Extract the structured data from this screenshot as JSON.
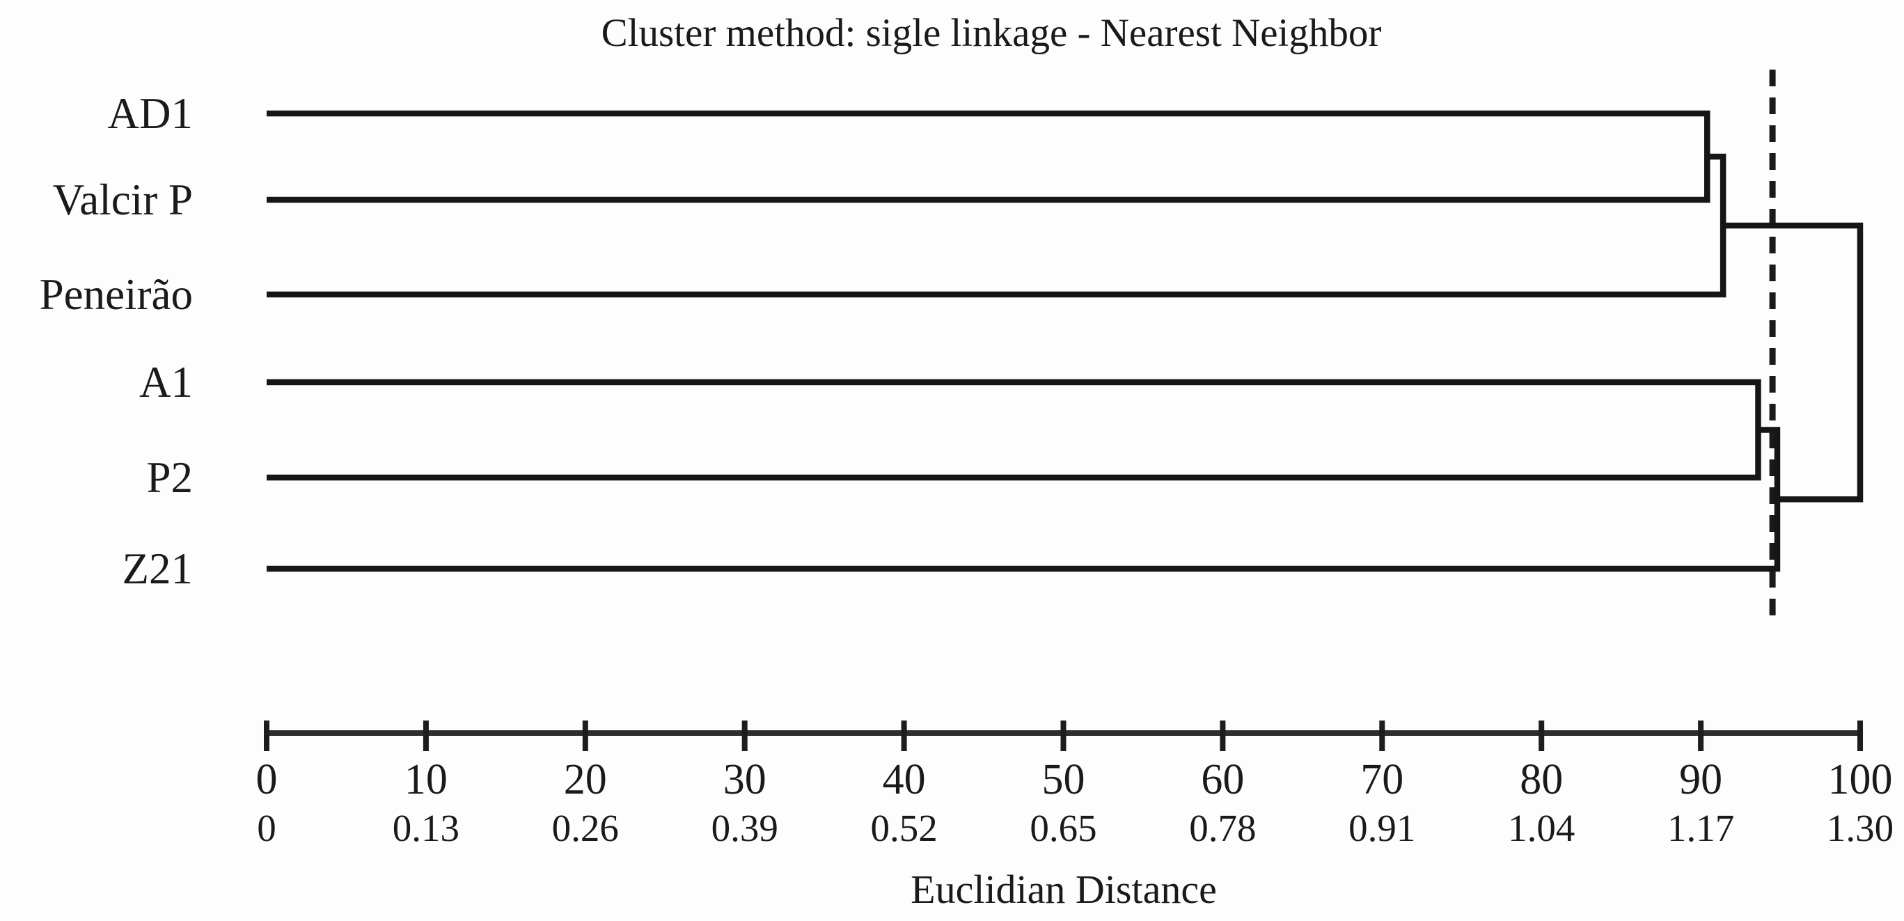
{
  "chart_data": {
    "type": "dendrogram",
    "orientation": "horizontal-left-leaves",
    "title": "Cluster method: sigle linkage - Nearest Neighbor",
    "xlabel": "Euclidian Distance",
    "grid": false,
    "legend": null,
    "leaves": [
      "AD1",
      "Valcir P",
      "Peneirão",
      "A1",
      "P2",
      "Z21"
    ],
    "leaf_start_value": 0,
    "merges": [
      {
        "id": "node0",
        "children": [
          "AD1",
          "Valcir P"
        ],
        "distance_pct": 90.4,
        "distance_euclidean": 1.18
      },
      {
        "id": "node1",
        "children": [
          "node0",
          "Peneirão"
        ],
        "distance_pct": 91.4,
        "distance_euclidean": 1.19
      },
      {
        "id": "node2",
        "children": [
          "A1",
          "P2"
        ],
        "distance_pct": 93.6,
        "distance_euclidean": 1.22
      },
      {
        "id": "node3",
        "children": [
          "node2",
          "Z21"
        ],
        "distance_pct": 94.8,
        "distance_euclidean": 1.23
      },
      {
        "id": "node4",
        "children": [
          "node1",
          "node3"
        ],
        "distance_pct": 100.0,
        "distance_euclidean": 1.3
      }
    ],
    "cutoff_line": {
      "value_pct": 94.5,
      "value_euclidean": 1.23,
      "style": "dashed"
    },
    "axis_primary": {
      "range": [
        0,
        100
      ],
      "labels": [
        "0",
        "10",
        "20",
        "30",
        "40",
        "50",
        "60",
        "70",
        "80",
        "90",
        "100"
      ]
    },
    "axis_secondary": {
      "range": [
        0,
        1.3
      ],
      "labels": [
        "0",
        "0.13",
        "0.26",
        "0.39",
        "0.52",
        "0.65",
        "0.78",
        "0.91",
        "1.04",
        "1.17",
        "1.30"
      ]
    }
  }
}
